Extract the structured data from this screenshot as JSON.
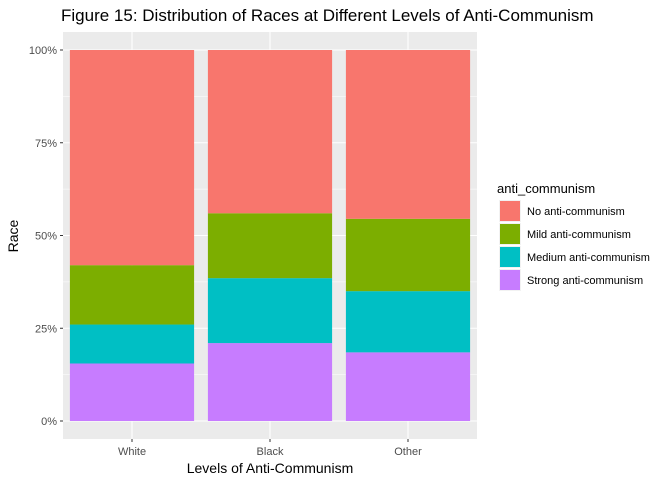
{
  "chart_data": {
    "type": "bar",
    "stacked": true,
    "title": "Figure 15: Distribution of Races at Different Levels of Anti-Communism",
    "xlabel": "Levels of Anti-Communism",
    "ylabel": "Race",
    "categories": [
      "White",
      "Black",
      "Other"
    ],
    "y_ticks": [
      "0%",
      "25%",
      "50%",
      "75%",
      "100%"
    ],
    "ylim": [
      0,
      1
    ],
    "grid": true,
    "legend_title": "anti_communism",
    "legend_position": "right",
    "series": [
      {
        "name": "Strong anti-communism",
        "color": "#C77CFF",
        "values": [
          0.155,
          0.21,
          0.185
        ]
      },
      {
        "name": "Medium anti-communism",
        "color": "#00BFC4",
        "values": [
          0.105,
          0.175,
          0.165
        ]
      },
      {
        "name": "Mild anti-communism",
        "color": "#7CAE00",
        "values": [
          0.16,
          0.175,
          0.195
        ]
      },
      {
        "name": "No anti-communism",
        "color": "#F8766D",
        "values": [
          0.58,
          0.44,
          0.455
        ]
      }
    ],
    "legend_order": [
      "No anti-communism",
      "Mild anti-communism",
      "Medium anti-communism",
      "Strong anti-communism"
    ]
  }
}
